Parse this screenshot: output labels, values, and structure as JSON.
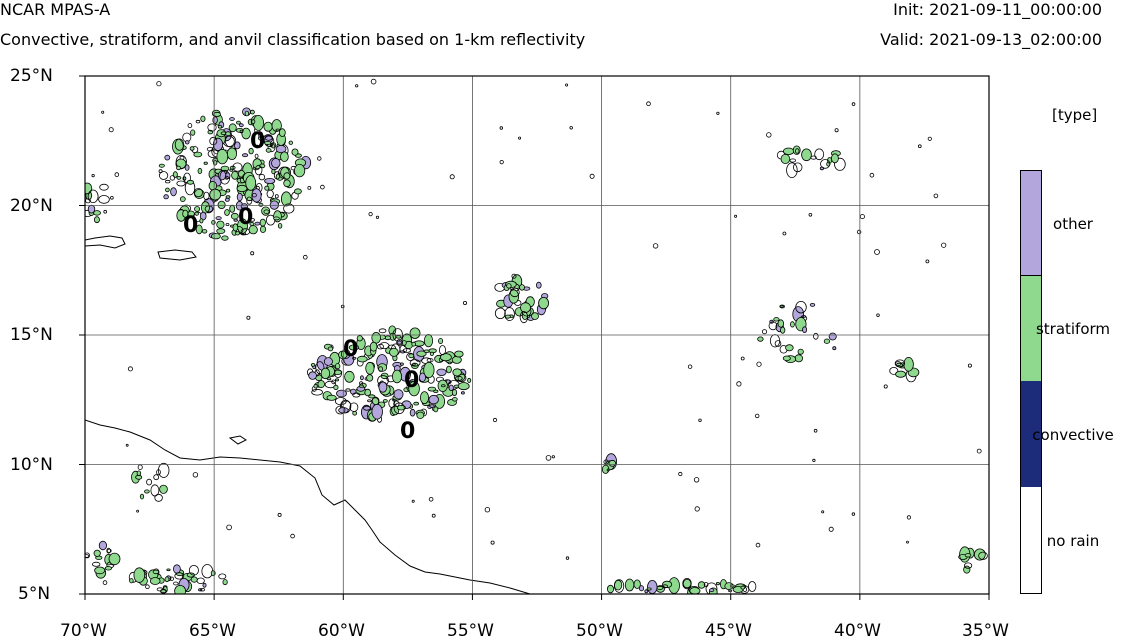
{
  "header": {
    "model": "NCAR MPAS-A",
    "subtitle": "Convective, stratiform, and anvil classification based on 1-km reflectivity",
    "init": "Init: 2021-09-11_00:00:00",
    "valid": "Valid: 2021-09-13_02:00:00"
  },
  "map": {
    "lon_range": [
      -70,
      -35
    ],
    "lat_range": [
      5,
      25
    ],
    "lat_ticks": [
      "5°N",
      "10°N",
      "15°N",
      "20°N",
      "25°N"
    ],
    "lon_ticks": [
      "70°W",
      "65°W",
      "60°W",
      "55°W",
      "50°W",
      "45°W",
      "40°W",
      "35°W"
    ],
    "grid": true,
    "zero_labels": [
      "0",
      "0",
      "0",
      "0",
      "0",
      "0"
    ]
  },
  "legend": {
    "title": "[type]",
    "items": [
      {
        "label": "other",
        "color": "#b3a6dc"
      },
      {
        "label": "stratiform",
        "color": "#8fd98f"
      },
      {
        "label": "convective",
        "color": "#1c2b7a"
      },
      {
        "label": "no rain",
        "color": "#ffffff"
      }
    ]
  }
}
